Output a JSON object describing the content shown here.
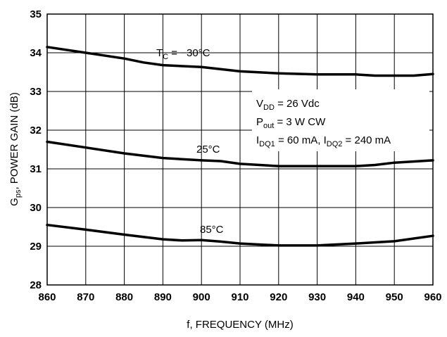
{
  "chart_data": {
    "type": "line",
    "xlabel": "f, FREQUENCY (MHz)",
    "ylabel": {
      "main": "G",
      "sub": "ps",
      "rest": ",  POWER GAIN (dB)"
    },
    "xlim": [
      860,
      960
    ],
    "ylim": [
      28,
      35
    ],
    "grid": true,
    "x_ticks": [
      860,
      870,
      880,
      890,
      900,
      910,
      920,
      930,
      940,
      950,
      960
    ],
    "y_ticks": [
      28,
      29,
      30,
      31,
      32,
      33,
      34,
      35
    ],
    "series": [
      {
        "label": {
          "prefix": "T",
          "sub": "C",
          "text": " = −30°C"
        },
        "points": [
          [
            860,
            34.15
          ],
          [
            870,
            34.0
          ],
          [
            880,
            33.85
          ],
          [
            885,
            33.75
          ],
          [
            890,
            33.68
          ],
          [
            900,
            33.63
          ],
          [
            910,
            33.52
          ],
          [
            920,
            33.47
          ],
          [
            930,
            33.44
          ],
          [
            940,
            33.44
          ],
          [
            945,
            33.41
          ],
          [
            950,
            33.41
          ],
          [
            955,
            33.41
          ],
          [
            960,
            33.45
          ]
        ]
      },
      {
        "label": {
          "prefix": "",
          "sub": "",
          "text": "25°C"
        },
        "points": [
          [
            860,
            31.7
          ],
          [
            870,
            31.55
          ],
          [
            880,
            31.4
          ],
          [
            890,
            31.28
          ],
          [
            900,
            31.22
          ],
          [
            905,
            31.2
          ],
          [
            910,
            31.13
          ],
          [
            920,
            31.07
          ],
          [
            930,
            31.07
          ],
          [
            940,
            31.07
          ],
          [
            945,
            31.1
          ],
          [
            950,
            31.16
          ],
          [
            960,
            31.22
          ]
        ]
      },
      {
        "label": {
          "prefix": "",
          "sub": "",
          "text": "85°C"
        },
        "points": [
          [
            860,
            29.55
          ],
          [
            870,
            29.43
          ],
          [
            880,
            29.3
          ],
          [
            890,
            29.18
          ],
          [
            895,
            29.15
          ],
          [
            900,
            29.16
          ],
          [
            905,
            29.12
          ],
          [
            910,
            29.07
          ],
          [
            920,
            29.02
          ],
          [
            930,
            29.02
          ],
          [
            940,
            29.07
          ],
          [
            950,
            29.13
          ],
          [
            960,
            29.27
          ]
        ]
      }
    ],
    "conditions": [
      {
        "prefix": "V",
        "sub": "DD",
        "text": " = 26 Vdc"
      },
      {
        "prefix": "P",
        "sub": "out",
        "text": " = 3 W CW"
      },
      {
        "prefix": "I",
        "sub": "DQ1",
        "text": " = 60 mA, ",
        "prefix2": "I",
        "sub2": "DQ2",
        "text2": " = 240 mA"
      }
    ]
  }
}
